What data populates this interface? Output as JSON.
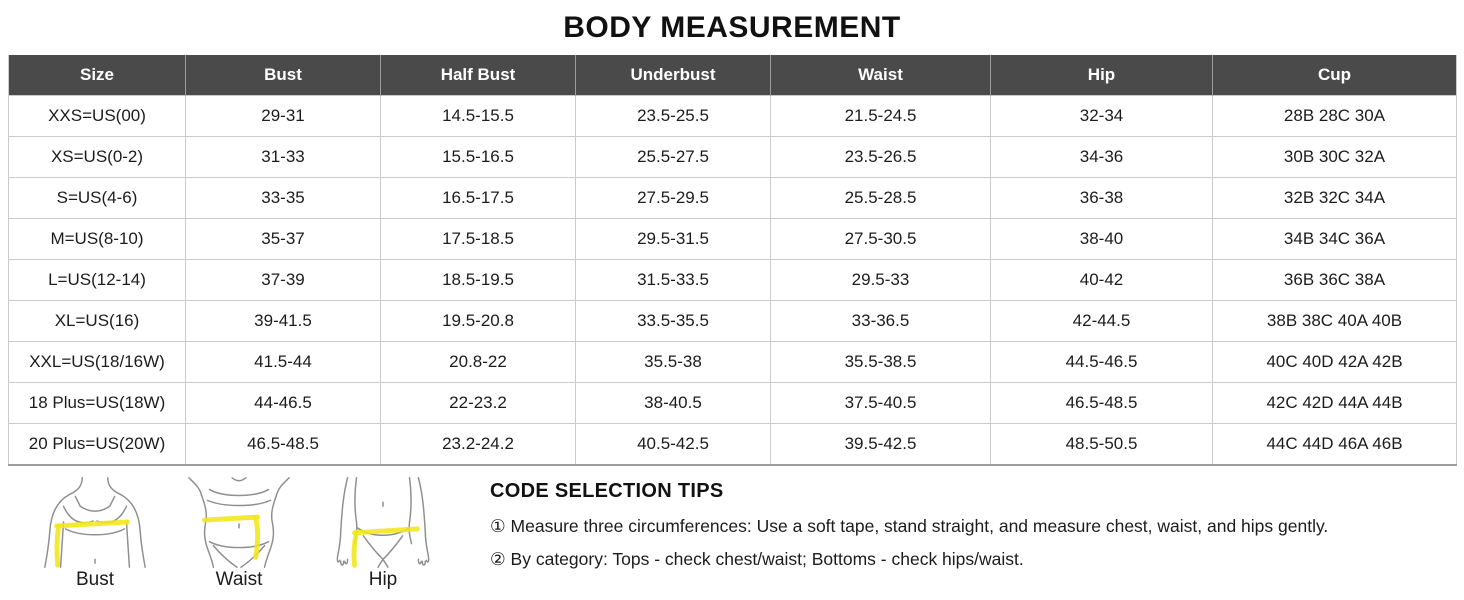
{
  "page_title": "BODY MEASUREMENT",
  "table": {
    "columns": [
      "Size",
      "Bust",
      "Half Bust",
      "Underbust",
      "Waist",
      "Hip",
      "Cup"
    ],
    "rows": [
      [
        "XXS=US(00)",
        "29-31",
        "14.5-15.5",
        "23.5-25.5",
        "21.5-24.5",
        "32-34",
        "28B 28C 30A"
      ],
      [
        "XS=US(0-2)",
        "31-33",
        "15.5-16.5",
        "25.5-27.5",
        "23.5-26.5",
        "34-36",
        "30B 30C 32A"
      ],
      [
        "S=US(4-6)",
        "33-35",
        "16.5-17.5",
        "27.5-29.5",
        "25.5-28.5",
        "36-38",
        "32B 32C 34A"
      ],
      [
        "M=US(8-10)",
        "35-37",
        "17.5-18.5",
        "29.5-31.5",
        "27.5-30.5",
        "38-40",
        "34B 34C 36A"
      ],
      [
        "L=US(12-14)",
        "37-39",
        "18.5-19.5",
        "31.5-33.5",
        "29.5-33",
        "40-42",
        "36B 36C 38A"
      ],
      [
        "XL=US(16)",
        "39-41.5",
        "19.5-20.8",
        "33.5-35.5",
        "33-36.5",
        "42-44.5",
        "38B 38C 40A 40B"
      ],
      [
        "XXL=US(18/16W)",
        "41.5-44",
        "20.8-22",
        "35.5-38",
        "35.5-38.5",
        "44.5-46.5",
        "40C 40D 42A 42B"
      ],
      [
        "18 Plus=US(18W)",
        "44-46.5",
        "22-23.2",
        "38-40.5",
        "37.5-40.5",
        "46.5-48.5",
        "42C 42D  44A 44B"
      ],
      [
        "20 Plus=US(20W)",
        "46.5-48.5",
        "23.2-24.2",
        "40.5-42.5",
        "39.5-42.5",
        "48.5-50.5",
        "44C 44D 46A 46B"
      ]
    ]
  },
  "diagrams": [
    {
      "label": "Bust"
    },
    {
      "label": "Waist"
    },
    {
      "label": "Hip"
    }
  ],
  "tips": {
    "heading": "CODE SELECTION TIPS",
    "items": [
      "① Measure three circumferences: Use a soft tape, stand straight, and measure chest, waist, and hips gently.",
      "② By category: Tops - check chest/waist; Bottoms - check hips/waist."
    ]
  },
  "colors": {
    "header_bg": "#4a4a4a",
    "header_text": "#ffffff",
    "grid_border": "#cbcbcb",
    "tape_yellow": "#f2e719",
    "figure_outline": "#8f8f8f"
  }
}
